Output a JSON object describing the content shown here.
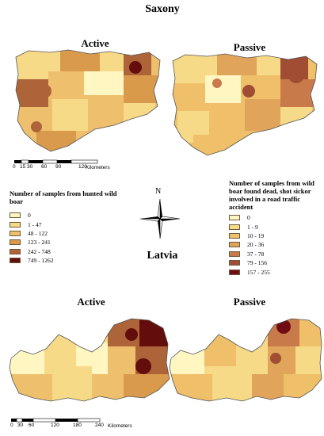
{
  "titles": {
    "saxony": "Saxony",
    "latvia": "Latvia",
    "saxony_active": "Active",
    "saxony_passive": "Passive",
    "latvia_active": "Active",
    "latvia_passive": "Passive"
  },
  "compass": {
    "north_label": "N"
  },
  "legend_hunted": {
    "title": "Number of samples from hunted wild boar",
    "items": [
      {
        "label": "0",
        "color": "#fff6c2"
      },
      {
        "label": "1 - 47",
        "color": "#f6da87"
      },
      {
        "label": "48 - 122",
        "color": "#eec06e"
      },
      {
        "label": "123 - 241",
        "color": "#d99a4c"
      },
      {
        "label": "242 - 748",
        "color": "#ad6438"
      },
      {
        "label": "749 - 1262",
        "color": "#640d0d"
      }
    ]
  },
  "legend_passive": {
    "title": "Number of samples from wild boar found dead, shot sickor involved in a road traffic accident",
    "items": [
      {
        "label": "0",
        "color": "#fff6c2"
      },
      {
        "label": "1 - 9",
        "color": "#f6da87"
      },
      {
        "label": "10 - 19",
        "color": "#efbf69"
      },
      {
        "label": "20 - 36",
        "color": "#e0a45b"
      },
      {
        "label": "37 - 78",
        "color": "#c97a4a"
      },
      {
        "label": "79 - 156",
        "color": "#a04d34"
      },
      {
        "label": "157 - 255",
        "color": "#700d12"
      }
    ]
  },
  "scale_saxony": {
    "ticks": [
      "0",
      "15",
      "30",
      "60",
      "90",
      "120"
    ],
    "unit": "Kilometers"
  },
  "scale_latvia": {
    "ticks": [
      "0",
      "30",
      "60",
      "120",
      "180",
      "240"
    ],
    "unit": "Kilometers"
  }
}
